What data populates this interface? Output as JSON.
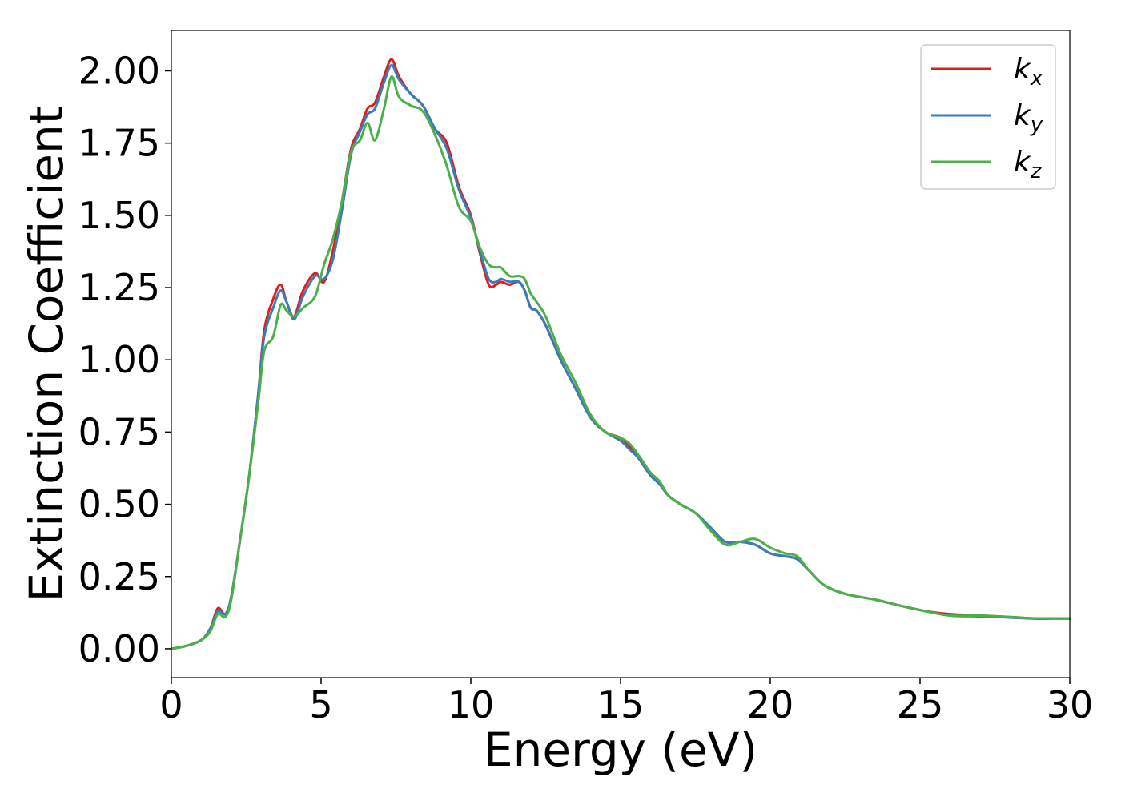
{
  "chart_data": {
    "type": "line",
    "xlabel": "Energy (eV)",
    "ylabel": "Extinction Coefficient",
    "xlim": [
      0,
      30
    ],
    "ylim": [
      -0.1,
      2.14
    ],
    "xticks": [
      0,
      5,
      10,
      15,
      20,
      25,
      30
    ],
    "xtick_labels": [
      "0",
      "5",
      "10",
      "15",
      "20",
      "25",
      "30"
    ],
    "yticks": [
      0,
      0.25,
      0.5,
      0.75,
      1.0,
      1.25,
      1.5,
      1.75,
      2.0
    ],
    "ytick_labels": [
      "0.00",
      "0.25",
      "0.50",
      "0.75",
      "1.00",
      "1.25",
      "1.50",
      "1.75",
      "2.00"
    ],
    "grid": false,
    "legend_position": "top-right",
    "series": [
      {
        "name": "k",
        "subscript": "x",
        "color": "#e41a1c",
        "x": [
          0,
          0.5,
          1.0,
          1.3,
          1.55,
          1.8,
          2.0,
          2.3,
          2.6,
          2.9,
          3.1,
          3.4,
          3.65,
          3.85,
          4.1,
          4.4,
          4.8,
          5.1,
          5.4,
          5.7,
          6.0,
          6.3,
          6.55,
          6.8,
          7.1,
          7.35,
          7.6,
          8.0,
          8.4,
          8.8,
          9.2,
          9.6,
          10.0,
          10.3,
          10.6,
          10.85,
          11.0,
          11.3,
          11.6,
          11.8,
          12.0,
          12.2,
          12.5,
          13.0,
          13.5,
          14.0,
          14.5,
          15.0,
          15.3,
          15.6,
          16.0,
          16.3,
          16.6,
          17.0,
          17.5,
          18.0,
          18.5,
          19.0,
          19.5,
          20.0,
          20.5,
          20.9,
          21.3,
          21.8,
          22.5,
          23.5,
          24.3,
          25.2,
          26.0,
          27.0,
          28.0,
          28.8,
          29.4,
          30.0
        ],
        "y": [
          0.0,
          0.01,
          0.03,
          0.07,
          0.14,
          0.12,
          0.18,
          0.38,
          0.6,
          0.88,
          1.1,
          1.21,
          1.26,
          1.2,
          1.15,
          1.24,
          1.3,
          1.27,
          1.38,
          1.55,
          1.73,
          1.8,
          1.87,
          1.89,
          1.98,
          2.04,
          1.98,
          1.92,
          1.88,
          1.8,
          1.75,
          1.6,
          1.5,
          1.37,
          1.26,
          1.26,
          1.27,
          1.26,
          1.27,
          1.24,
          1.18,
          1.17,
          1.12,
          1.0,
          0.9,
          0.8,
          0.75,
          0.73,
          0.7,
          0.66,
          0.6,
          0.57,
          0.53,
          0.5,
          0.47,
          0.42,
          0.37,
          0.37,
          0.36,
          0.33,
          0.32,
          0.31,
          0.27,
          0.22,
          0.19,
          0.17,
          0.15,
          0.13,
          0.12,
          0.115,
          0.11,
          0.105,
          0.105,
          0.105
        ]
      },
      {
        "name": "k",
        "subscript": "y",
        "color": "#377eb8",
        "x": [
          0,
          0.5,
          1.0,
          1.3,
          1.55,
          1.8,
          2.0,
          2.3,
          2.6,
          2.9,
          3.1,
          3.4,
          3.65,
          3.85,
          4.1,
          4.4,
          4.8,
          5.1,
          5.4,
          5.7,
          6.0,
          6.3,
          6.55,
          6.8,
          7.1,
          7.35,
          7.6,
          8.0,
          8.4,
          8.8,
          9.2,
          9.6,
          10.0,
          10.3,
          10.6,
          10.85,
          11.0,
          11.3,
          11.6,
          11.8,
          12.0,
          12.2,
          12.5,
          13.0,
          13.5,
          14.0,
          14.5,
          15.0,
          15.3,
          15.6,
          16.0,
          16.3,
          16.6,
          17.0,
          17.5,
          18.0,
          18.5,
          19.0,
          19.5,
          20.0,
          20.5,
          20.9,
          21.3,
          21.8,
          22.5,
          23.5,
          24.3,
          25.2,
          26.0,
          27.0,
          28.0,
          28.8,
          29.4,
          30.0
        ],
        "y": [
          0.0,
          0.01,
          0.03,
          0.07,
          0.13,
          0.12,
          0.18,
          0.38,
          0.6,
          0.88,
          1.08,
          1.18,
          1.24,
          1.2,
          1.14,
          1.22,
          1.29,
          1.28,
          1.35,
          1.52,
          1.71,
          1.79,
          1.85,
          1.87,
          1.96,
          2.02,
          1.97,
          1.92,
          1.88,
          1.8,
          1.73,
          1.59,
          1.49,
          1.38,
          1.28,
          1.27,
          1.28,
          1.27,
          1.27,
          1.24,
          1.18,
          1.17,
          1.12,
          1.0,
          0.9,
          0.8,
          0.75,
          0.72,
          0.69,
          0.66,
          0.6,
          0.57,
          0.53,
          0.5,
          0.47,
          0.42,
          0.37,
          0.37,
          0.36,
          0.33,
          0.32,
          0.31,
          0.27,
          0.22,
          0.19,
          0.17,
          0.15,
          0.13,
          0.115,
          0.112,
          0.108,
          0.104,
          0.104,
          0.104
        ]
      },
      {
        "name": "k",
        "subscript": "z",
        "color": "#4daf4a",
        "x": [
          0,
          0.5,
          1.0,
          1.3,
          1.55,
          1.8,
          2.0,
          2.3,
          2.6,
          2.9,
          3.1,
          3.4,
          3.65,
          3.85,
          4.1,
          4.4,
          4.8,
          5.1,
          5.4,
          5.7,
          6.0,
          6.3,
          6.55,
          6.8,
          7.1,
          7.35,
          7.6,
          8.0,
          8.4,
          8.8,
          9.2,
          9.6,
          10.0,
          10.3,
          10.6,
          10.85,
          11.0,
          11.3,
          11.6,
          11.8,
          12.0,
          12.2,
          12.5,
          13.0,
          13.5,
          14.0,
          14.5,
          15.0,
          15.3,
          15.6,
          16.0,
          16.3,
          16.6,
          17.0,
          17.5,
          18.0,
          18.5,
          19.0,
          19.5,
          20.0,
          20.5,
          20.9,
          21.3,
          21.8,
          22.5,
          23.5,
          24.3,
          25.2,
          26.0,
          27.0,
          28.0,
          28.8,
          29.4,
          30.0
        ],
        "y": [
          0.0,
          0.01,
          0.03,
          0.06,
          0.12,
          0.11,
          0.17,
          0.38,
          0.6,
          0.85,
          1.03,
          1.08,
          1.19,
          1.17,
          1.15,
          1.18,
          1.22,
          1.33,
          1.42,
          1.55,
          1.72,
          1.76,
          1.82,
          1.76,
          1.87,
          1.98,
          1.91,
          1.88,
          1.86,
          1.78,
          1.67,
          1.53,
          1.48,
          1.39,
          1.33,
          1.32,
          1.32,
          1.29,
          1.29,
          1.28,
          1.23,
          1.2,
          1.15,
          1.02,
          0.92,
          0.81,
          0.75,
          0.73,
          0.71,
          0.67,
          0.61,
          0.58,
          0.53,
          0.5,
          0.47,
          0.41,
          0.36,
          0.37,
          0.38,
          0.35,
          0.33,
          0.32,
          0.27,
          0.22,
          0.19,
          0.17,
          0.15,
          0.13,
          0.115,
          0.115,
          0.11,
          0.105,
          0.105,
          0.105
        ]
      }
    ]
  }
}
